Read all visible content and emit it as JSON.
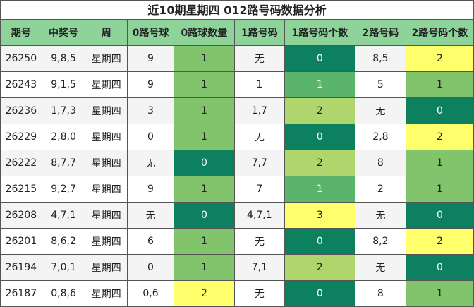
{
  "title": "近10期星期四 012路号码数据分析",
  "headers": [
    "期号",
    "中奖号",
    "周",
    "0路号球",
    "0路球数量",
    "1路号码",
    "1路号码个数",
    "2路号码",
    "2路号码个数"
  ],
  "colors": {
    "header": "#8ed49a",
    "count_1": "#82c46c",
    "count_0": "#0d8060",
    "count_1_light": "#5ab46c",
    "count_2": "#aed66c",
    "count_2_yellow": "#ffff6c"
  },
  "rows": [
    {
      "issue": "26250",
      "number": "9,8,5",
      "week": "星期四",
      "r0": "9",
      "r0n": "1",
      "r1": "无",
      "r1n": "0",
      "r2": "8,5",
      "r2n": "2"
    },
    {
      "issue": "26243",
      "number": "9,1,5",
      "week": "星期四",
      "r0": "9",
      "r0n": "1",
      "r1": "1",
      "r1n": "1",
      "r2": "5",
      "r2n": "1"
    },
    {
      "issue": "26236",
      "number": "1,7,3",
      "week": "星期四",
      "r0": "3",
      "r0n": "1",
      "r1": "1,7",
      "r1n": "2",
      "r2": "无",
      "r2n": "0"
    },
    {
      "issue": "26229",
      "number": "2,8,0",
      "week": "星期四",
      "r0": "0",
      "r0n": "1",
      "r1": "无",
      "r1n": "0",
      "r2": "2,8",
      "r2n": "2"
    },
    {
      "issue": "26222",
      "number": "8,7,7",
      "week": "星期四",
      "r0": "无",
      "r0n": "0",
      "r1": "7,7",
      "r1n": "2",
      "r2": "8",
      "r2n": "1"
    },
    {
      "issue": "26215",
      "number": "9,2,7",
      "week": "星期四",
      "r0": "9",
      "r0n": "1",
      "r1": "7",
      "r1n": "1",
      "r2": "2",
      "r2n": "1"
    },
    {
      "issue": "26208",
      "number": "4,7,1",
      "week": "星期四",
      "r0": "无",
      "r0n": "0",
      "r1": "4,7,1",
      "r1n": "3",
      "r2": "无",
      "r2n": "0"
    },
    {
      "issue": "26201",
      "number": "8,6,2",
      "week": "星期四",
      "r0": "6",
      "r0n": "1",
      "r1": "无",
      "r1n": "0",
      "r2": "8,2",
      "r2n": "2"
    },
    {
      "issue": "26194",
      "number": "7,0,1",
      "week": "星期四",
      "r0": "0",
      "r0n": "1",
      "r1": "7,1",
      "r1n": "2",
      "r2": "无",
      "r2n": "0"
    },
    {
      "issue": "26187",
      "number": "0,8,6",
      "week": "星期四",
      "r0": "0,6",
      "r0n": "2",
      "r1": "无",
      "r1n": "0",
      "r2": "8",
      "r2n": "1"
    }
  ]
}
